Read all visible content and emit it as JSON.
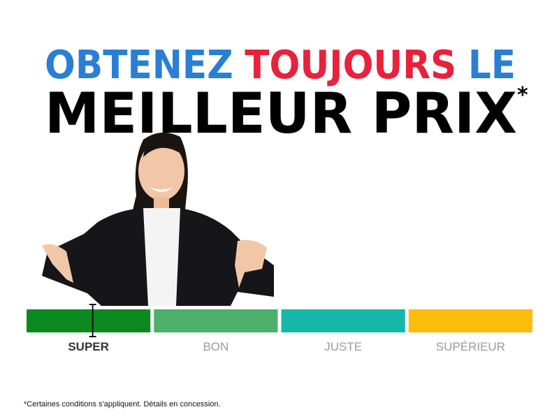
{
  "headline": {
    "words": [
      {
        "text": "OBTENEZ",
        "color": "#2a7fd4"
      },
      {
        "text": "TOUJOURS",
        "color": "#e8223b"
      },
      {
        "text": "LE",
        "color": "#2a7fd4"
      }
    ],
    "line2": "MEILLEUR PRIX",
    "asterisk": "*"
  },
  "scale": {
    "segments": [
      {
        "label": "SUPER",
        "color": "#0d8a1f",
        "active": true
      },
      {
        "label": "BON",
        "color": "#4caf6b",
        "active": false
      },
      {
        "label": "JUSTE",
        "color": "#15b8a8",
        "active": false
      },
      {
        "label": "SUPÉRIEUR",
        "color": "#fbbc0b",
        "active": false
      }
    ]
  },
  "footnote": "*Certaines conditions s'appliquent. Détails en concession."
}
